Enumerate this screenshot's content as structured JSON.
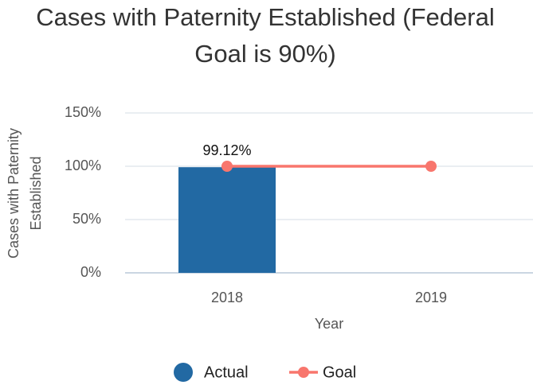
{
  "chart_data": {
    "type": "bar_line",
    "title": [
      "Cases with Paternity Established (Federal",
      "Goal is 90%)"
    ],
    "x_label": "Year",
    "y_label": [
      "Cases with Paternity",
      "Established"
    ],
    "categories": [
      "2018",
      "2019"
    ],
    "series": [
      {
        "name": "Actual",
        "type": "bar",
        "color": "#2269a3",
        "values": [
          99.12,
          null
        ],
        "value_labels": [
          "99.12%",
          null
        ]
      },
      {
        "name": "Goal",
        "type": "line",
        "color": "#f8766d",
        "values": [
          100,
          100
        ]
      }
    ],
    "ylim": [
      0,
      150
    ],
    "yticks": [
      {
        "value": 0,
        "label": "0%"
      },
      {
        "value": 50,
        "label": "50%"
      },
      {
        "value": 100,
        "label": "100%"
      },
      {
        "value": 150,
        "label": "150%"
      }
    ],
    "grid": true,
    "legend": "bottom"
  }
}
